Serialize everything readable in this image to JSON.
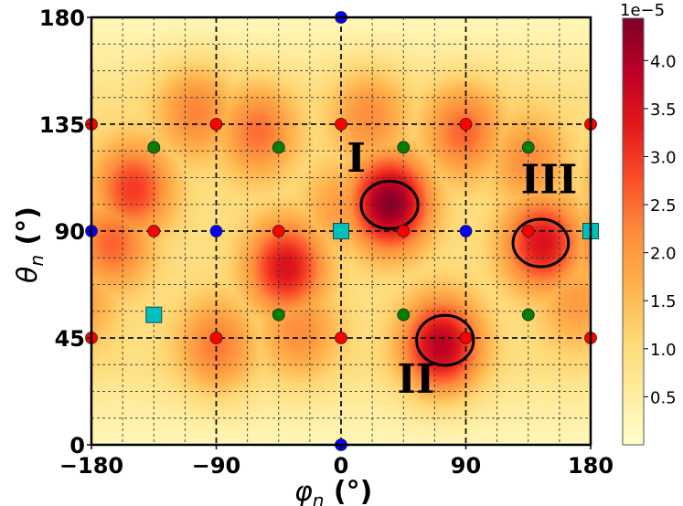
{
  "chart_data": {
    "type": "heatmap",
    "title": "",
    "xlabel": "φn (°)",
    "ylabel": "θn (°)",
    "xlabel_main": "φ",
    "xlabel_sub": "n",
    "xlabel_unit": " (°)",
    "ylabel_main": "θ",
    "ylabel_sub": "n",
    "ylabel_unit": " (°)",
    "xlim": [
      -180,
      180
    ],
    "ylim": [
      0,
      180
    ],
    "xticks": [
      -180,
      -90,
      0,
      90,
      180
    ],
    "xtick_labels": [
      "−180",
      "−90",
      "0",
      "90",
      "180"
    ],
    "yticks": [
      0,
      45,
      90,
      135,
      180
    ],
    "ytick_labels": [
      "0",
      "45",
      "90",
      "135",
      "180"
    ],
    "major_grid_x": [
      -90,
      0,
      90
    ],
    "major_grid_y": [
      45,
      90,
      135
    ],
    "minor_grid_step_x": 22.5,
    "minor_grid_step_y": 11.25,
    "grid": true,
    "colormap": "YlOrRd",
    "colorbar": {
      "range": [
        0,
        4.44
      ],
      "ticks": [
        0.5,
        1.0,
        1.5,
        2.0,
        2.5,
        3.0,
        3.5,
        4.0
      ],
      "tick_labels": [
        "0.5",
        "1.0",
        "1.5",
        "2.0",
        "2.5",
        "3.0",
        "3.5",
        "4.0"
      ],
      "multiplier_label": "1e−5",
      "placement": "right"
    },
    "background_level": 0.9,
    "peaks": [
      {
        "phi": 35,
        "theta": 102,
        "value": 4.4
      },
      {
        "phi": 72,
        "theta": 42,
        "value": 3.9
      },
      {
        "phi": 145,
        "theta": 85,
        "value": 3.5
      },
      {
        "phi": -40,
        "theta": 75,
        "value": 3.5
      },
      {
        "phi": -150,
        "theta": 108,
        "value": 3.0
      },
      {
        "phi": -165,
        "theta": 85,
        "value": 2.6
      },
      {
        "phi": -60,
        "theta": 132,
        "value": 2.5
      },
      {
        "phi": -105,
        "theta": 140,
        "value": 2.3
      },
      {
        "phi": 88,
        "theta": 132,
        "value": 2.6
      },
      {
        "phi": 135,
        "theta": 120,
        "value": 2.2
      },
      {
        "phi": -90,
        "theta": 42,
        "value": 2.4
      },
      {
        "phi": -30,
        "theta": 48,
        "value": 2.2
      },
      {
        "phi": 20,
        "theta": 138,
        "value": 2.2
      },
      {
        "phi": 170,
        "theta": 60,
        "value": 2.0
      },
      {
        "phi": 0,
        "theta": 100,
        "value": 2.0
      }
    ],
    "markers": [
      {
        "series": "red",
        "phi": -180,
        "theta": 135
      },
      {
        "series": "red",
        "phi": -90,
        "theta": 135
      },
      {
        "series": "red",
        "phi": 0,
        "theta": 135
      },
      {
        "series": "red",
        "phi": 90,
        "theta": 135
      },
      {
        "series": "red",
        "phi": 180,
        "theta": 135
      },
      {
        "series": "red",
        "phi": -135,
        "theta": 90
      },
      {
        "series": "red",
        "phi": -45,
        "theta": 90
      },
      {
        "series": "red",
        "phi": 45,
        "theta": 90
      },
      {
        "series": "red",
        "phi": 135,
        "theta": 90
      },
      {
        "series": "red",
        "phi": -180,
        "theta": 45
      },
      {
        "series": "red",
        "phi": -90,
        "theta": 45
      },
      {
        "series": "red",
        "phi": 0,
        "theta": 45
      },
      {
        "series": "red",
        "phi": 90,
        "theta": 45
      },
      {
        "series": "red",
        "phi": 180,
        "theta": 45
      },
      {
        "series": "green",
        "phi": -135,
        "theta": 125.26
      },
      {
        "series": "green",
        "phi": -45,
        "theta": 125.26
      },
      {
        "series": "green",
        "phi": 45,
        "theta": 125.26
      },
      {
        "series": "green",
        "phi": 135,
        "theta": 125.26
      },
      {
        "series": "green",
        "phi": -45,
        "theta": 54.74
      },
      {
        "series": "green",
        "phi": 45,
        "theta": 54.74
      },
      {
        "series": "green",
        "phi": 135,
        "theta": 54.74
      },
      {
        "series": "blue",
        "phi": 0,
        "theta": 180
      },
      {
        "series": "blue",
        "phi": 0,
        "theta": 0
      },
      {
        "series": "blue",
        "phi": -180,
        "theta": 90
      },
      {
        "series": "blue",
        "phi": -90,
        "theta": 90
      },
      {
        "series": "blue",
        "phi": 90,
        "theta": 90
      },
      {
        "series": "cyan-square",
        "phi": 0,
        "theta": 90
      },
      {
        "series": "cyan-square",
        "phi": 180,
        "theta": 90
      },
      {
        "series": "cyan-square",
        "phi": -135,
        "theta": 54.74
      }
    ],
    "series_colors": {
      "red": "#ff0000",
      "green": "#007f00",
      "blue": "#0000ff",
      "cyan-square": "#00bfbf"
    },
    "annotations": [
      {
        "label": "I",
        "phi": 11,
        "theta": 115,
        "ellipse": {
          "phi": 35,
          "theta": 101,
          "w_deg": 41,
          "h_deg": 20
        }
      },
      {
        "label": "II",
        "phi": 54,
        "theta": 22,
        "ellipse": {
          "phi": 75,
          "theta": 44,
          "w_deg": 41,
          "h_deg": 21
        }
      },
      {
        "label": "III",
        "phi": 150,
        "theta": 106,
        "ellipse": {
          "phi": 144,
          "theta": 85,
          "w_deg": 40,
          "h_deg": 20
        }
      }
    ]
  }
}
